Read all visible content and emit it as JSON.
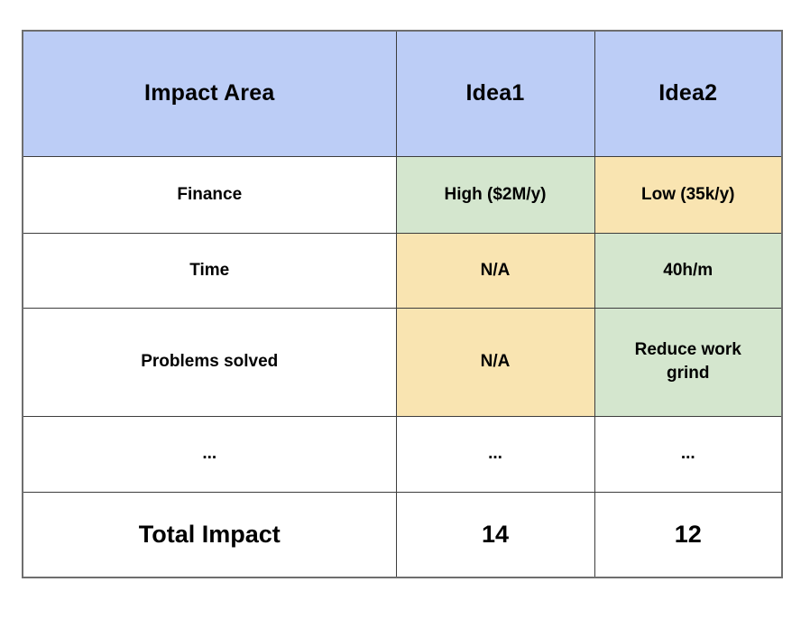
{
  "colors": {
    "header_bg": "#bccdf6",
    "positive_bg": "#d4e6ce",
    "negative_bg": "#f9e4b1",
    "row_bg": "#ffffff",
    "border_inner": "#3d3d3d",
    "border_outer": "#6e6e6e",
    "text": "#000000"
  },
  "table": {
    "columns": [
      {
        "label": "Impact Area"
      },
      {
        "label": "Idea1"
      },
      {
        "label": "Idea2"
      }
    ],
    "rows": [
      {
        "area": "Finance",
        "idea1": {
          "text": "High ($2M/y)",
          "highlight": "positive"
        },
        "idea2": {
          "text": "Low (35k/y)",
          "highlight": "negative"
        }
      },
      {
        "area": "Time",
        "idea1": {
          "text": "N/A",
          "highlight": "negative"
        },
        "idea2": {
          "text": "40h/m",
          "highlight": "positive"
        }
      },
      {
        "area": "Problems solved",
        "idea1": {
          "text": "N/A",
          "highlight": "negative"
        },
        "idea2": {
          "text": "Reduce work grind",
          "highlight": "positive"
        }
      },
      {
        "area": "...",
        "idea1": {
          "text": "...",
          "highlight": "none"
        },
        "idea2": {
          "text": "...",
          "highlight": "none"
        }
      }
    ],
    "total_row": {
      "label": "Total Impact",
      "idea1": "14",
      "idea2": "12"
    }
  }
}
